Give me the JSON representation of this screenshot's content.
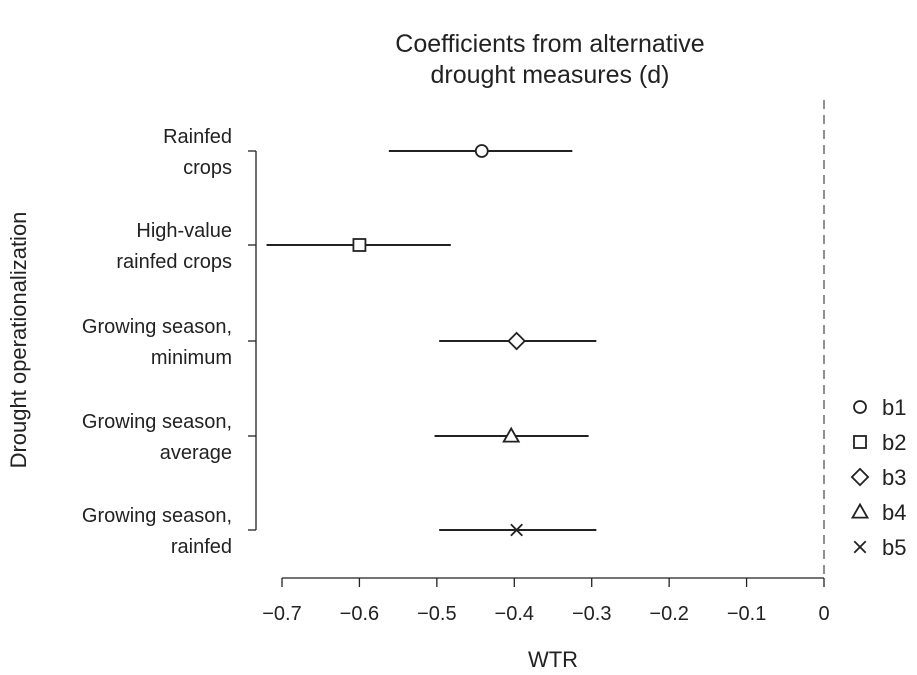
{
  "chart_data": {
    "type": "forest",
    "title_lines": [
      "Coefficients from alternative",
      "drought measures (d)"
    ],
    "xlabel": "WTR",
    "ylabel": "Drought operationalization",
    "xlim": [
      -0.72,
      0.0
    ],
    "xticks": [
      -0.7,
      -0.6,
      -0.5,
      -0.4,
      -0.3,
      -0.2,
      -0.1,
      0
    ],
    "xtick_labels": [
      "−0.7",
      "−0.6",
      "−0.5",
      "−0.4",
      "−0.3",
      "−0.2",
      "−0.1",
      "0"
    ],
    "reference_line": 0,
    "series": [
      {
        "key": "b1",
        "marker": "circle",
        "label_lines": [
          "Rainfed",
          "crops"
        ],
        "estimate": -0.442,
        "ci": [
          -0.562,
          -0.325
        ]
      },
      {
        "key": "b2",
        "marker": "square",
        "label_lines": [
          "High-value",
          "rainfed crops"
        ],
        "estimate": -0.6,
        "ci": [
          -0.72,
          -0.482
        ]
      },
      {
        "key": "b3",
        "marker": "diamond",
        "label_lines": [
          "Growing season,",
          "minimum"
        ],
        "estimate": -0.397,
        "ci": [
          -0.497,
          -0.294
        ]
      },
      {
        "key": "b4",
        "marker": "triangle",
        "label_lines": [
          "Growing season,",
          "average"
        ],
        "estimate": -0.404,
        "ci": [
          -0.503,
          -0.304
        ]
      },
      {
        "key": "b5",
        "marker": "cross",
        "label_lines": [
          "Growing season,",
          "rainfed"
        ],
        "estimate": -0.397,
        "ci": [
          -0.497,
          -0.294
        ]
      }
    ],
    "legend": [
      {
        "marker": "circle",
        "label": "b1"
      },
      {
        "marker": "square",
        "label": "b2"
      },
      {
        "marker": "diamond",
        "label": "b3"
      },
      {
        "marker": "triangle",
        "label": "b4"
      },
      {
        "marker": "cross",
        "label": "b5"
      }
    ],
    "legend_position": "right",
    "colors": {
      "ink": "#222222",
      "refline": "#555555"
    }
  }
}
